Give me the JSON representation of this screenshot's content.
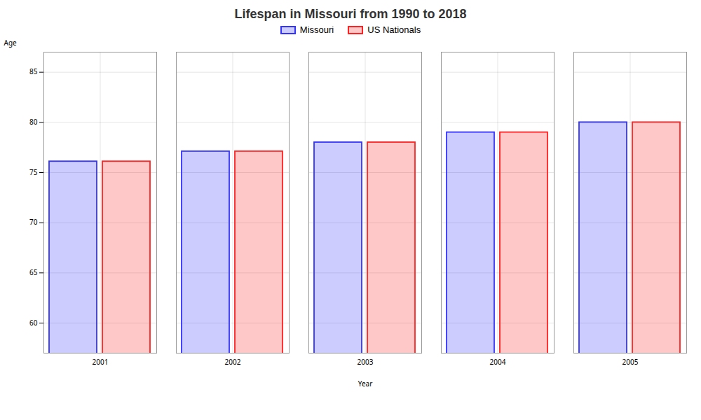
{
  "chart_data": {
    "type": "bar",
    "title": "Lifespan in Missouri from 1990 to 2018",
    "xlabel": "Year",
    "ylabel": "Age",
    "categories": [
      "2001",
      "2002",
      "2003",
      "2004",
      "2005"
    ],
    "series": [
      {
        "name": "Missouri",
        "color": "#3333ff",
        "values": [
          76.1,
          77.1,
          78.0,
          79.0,
          80.0
        ]
      },
      {
        "name": "US Nationals",
        "color": "#ff2222",
        "values": [
          76.1,
          77.1,
          78.0,
          79.0,
          80.0
        ]
      }
    ],
    "ylim": [
      57,
      87
    ],
    "yticks": [
      60,
      65,
      70,
      75,
      80,
      85
    ],
    "grid": true,
    "legend": "top"
  }
}
